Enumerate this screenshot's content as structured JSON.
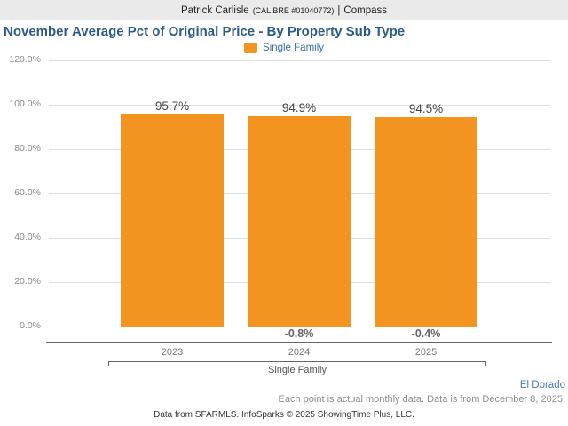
{
  "header": {
    "agent": "Patrick Carlisle",
    "license": "(CAL BRE #01040772)",
    "separator": "|",
    "company": "Compass"
  },
  "title": "November Average Pct of Original Price - By Property Sub Type",
  "legend": {
    "label": "Single Family"
  },
  "chart_data": {
    "type": "bar",
    "title": "November Average Pct of Original Price - By Property Sub Type",
    "categories": [
      "2023",
      "2024",
      "2025"
    ],
    "series": [
      {
        "name": "Single Family",
        "values": [
          95.7,
          94.9,
          94.5
        ]
      }
    ],
    "value_labels": [
      "95.7%",
      "94.9%",
      "94.5%"
    ],
    "change_labels": [
      "",
      "-0.8%",
      "-0.4%"
    ],
    "y_ticks": [
      "120.0%",
      "100.0%",
      "80.0%",
      "60.0%",
      "40.0%",
      "20.0%",
      "0.0%"
    ],
    "y_tick_values": [
      120,
      100,
      80,
      60,
      40,
      20,
      0
    ],
    "ylim": [
      0,
      120
    ],
    "xlabel": "Single Family",
    "ylabel": "",
    "grid": true,
    "legend_position": "top"
  },
  "footer": {
    "region": "El Dorado",
    "note": "Each point is actual monthly data. Data is from December 8, 2025.",
    "attribution": "Data from SFARMLS. InfoSparks © 2025 ShowingTime Plus, LLC."
  },
  "colors": {
    "bar": "#F2941F",
    "title_text": "#2B5A87",
    "legend_text": "#3A6EA5",
    "region_text": "#4678B2",
    "header_band": "#EAEAEA"
  }
}
